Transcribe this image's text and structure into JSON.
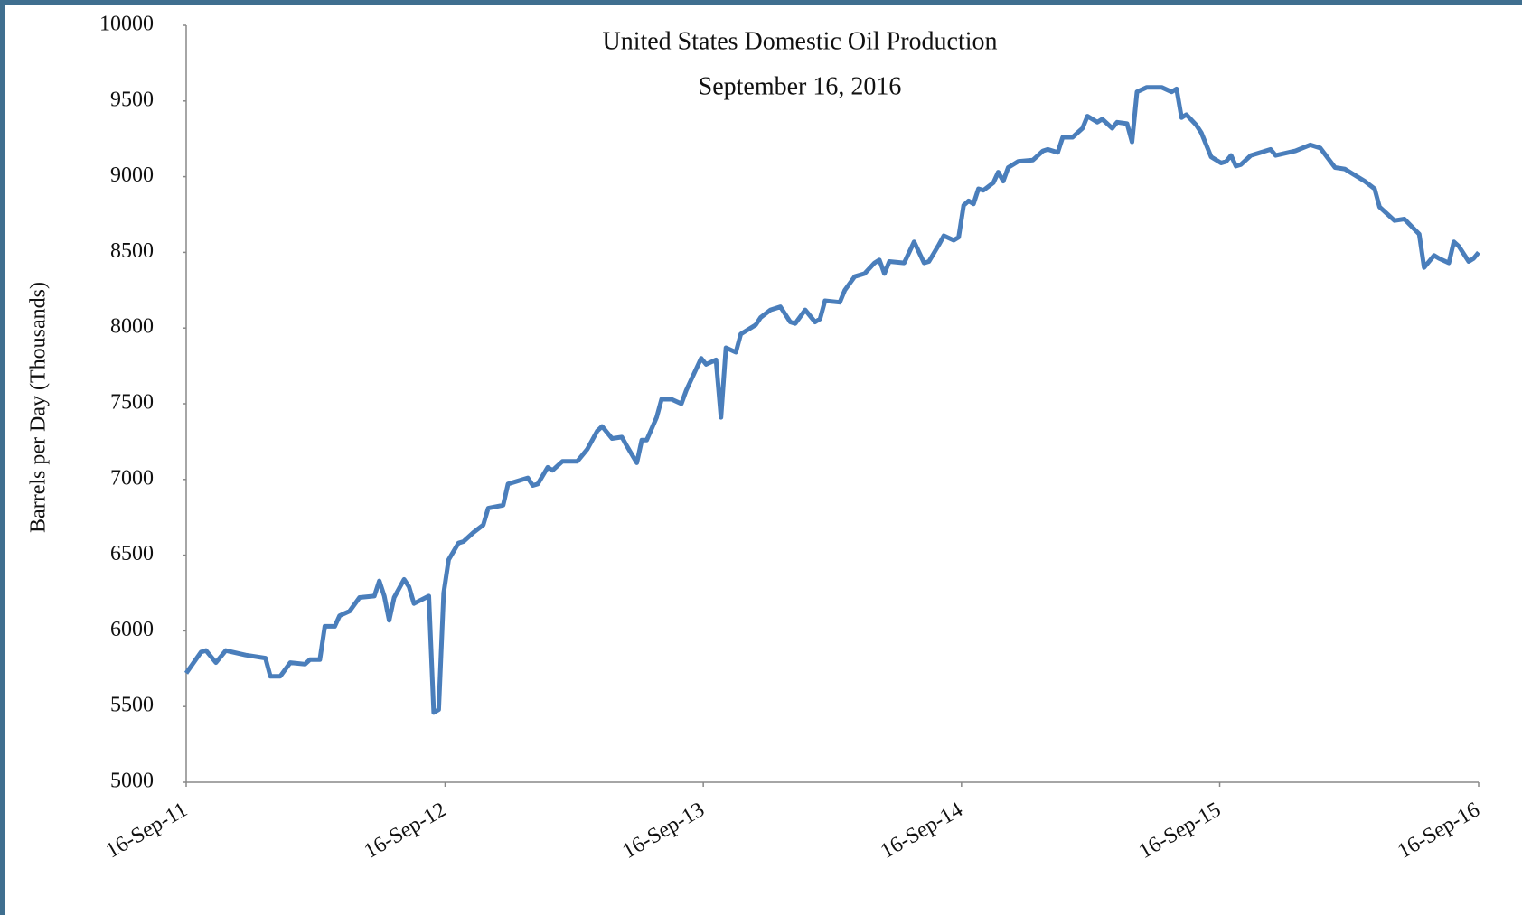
{
  "chart_data": {
    "type": "line",
    "title": "United States Domestic Oil Production",
    "subtitle": "September 16, 2016",
    "y_label": "Barrels per Day (Thousands)",
    "color": "#4a7ebb",
    "x": [
      "2011-09-16",
      "2011-10-07",
      "2011-10-14",
      "2011-10-28",
      "2011-11-11",
      "2011-12-09",
      "2012-01-06",
      "2012-01-13",
      "2012-01-27",
      "2012-02-10",
      "2012-03-02",
      "2012-03-09",
      "2012-03-23",
      "2012-03-30",
      "2012-04-13",
      "2012-04-20",
      "2012-05-04",
      "2012-05-18",
      "2012-06-08",
      "2012-06-15",
      "2012-06-22",
      "2012-06-29",
      "2012-07-06",
      "2012-07-20",
      "2012-07-27",
      "2012-08-03",
      "2012-08-24",
      "2012-08-31",
      "2012-09-07",
      "2012-09-14",
      "2012-09-21",
      "2012-10-05",
      "2012-10-12",
      "2012-10-26",
      "2012-11-09",
      "2012-11-16",
      "2012-12-07",
      "2012-12-14",
      "2013-01-11",
      "2013-01-18",
      "2013-01-25",
      "2013-02-08",
      "2013-02-15",
      "2013-03-01",
      "2013-03-22",
      "2013-04-05",
      "2013-04-19",
      "2013-04-26",
      "2013-05-10",
      "2013-05-24",
      "2013-05-31",
      "2013-06-14",
      "2013-06-21",
      "2013-06-28",
      "2013-07-12",
      "2013-07-19",
      "2013-08-02",
      "2013-08-16",
      "2013-08-23",
      "2013-09-06",
      "2013-09-13",
      "2013-09-20",
      "2013-10-04",
      "2013-10-11",
      "2013-10-18",
      "2013-11-01",
      "2013-11-08",
      "2013-11-29",
      "2013-12-06",
      "2013-12-20",
      "2014-01-03",
      "2014-01-17",
      "2014-01-24",
      "2014-02-07",
      "2014-02-21",
      "2014-02-28",
      "2014-03-07",
      "2014-03-28",
      "2014-04-04",
      "2014-04-18",
      "2014-05-02",
      "2014-05-16",
      "2014-05-23",
      "2014-05-30",
      "2014-06-06",
      "2014-06-27",
      "2014-07-11",
      "2014-07-25",
      "2014-08-01",
      "2014-08-15",
      "2014-08-22",
      "2014-09-05",
      "2014-09-12",
      "2014-09-19",
      "2014-09-26",
      "2014-10-03",
      "2014-10-10",
      "2014-10-17",
      "2014-10-31",
      "2014-11-07",
      "2014-11-14",
      "2014-11-21",
      "2014-12-05",
      "2014-12-26",
      "2015-01-09",
      "2015-01-16",
      "2015-01-30",
      "2015-02-06",
      "2015-02-20",
      "2015-03-06",
      "2015-03-13",
      "2015-03-27",
      "2015-04-03",
      "2015-04-17",
      "2015-04-24",
      "2015-05-08",
      "2015-05-15",
      "2015-05-22",
      "2015-06-05",
      "2015-06-26",
      "2015-07-10",
      "2015-07-17",
      "2015-07-24",
      "2015-07-31",
      "2015-08-14",
      "2015-08-21",
      "2015-09-04",
      "2015-09-18",
      "2015-09-25",
      "2015-10-02",
      "2015-10-09",
      "2015-10-16",
      "2015-10-30",
      "2015-11-13",
      "2015-11-27",
      "2015-12-04",
      "2016-01-01",
      "2016-01-22",
      "2016-02-05",
      "2016-02-26",
      "2016-03-11",
      "2016-04-08",
      "2016-04-22",
      "2016-04-29",
      "2016-05-20",
      "2016-06-03",
      "2016-06-24",
      "2016-07-01",
      "2016-07-15",
      "2016-07-22",
      "2016-08-05",
      "2016-08-12",
      "2016-08-19",
      "2016-09-02",
      "2016-09-09",
      "2016-09-16"
    ],
    "values": [
      5720,
      5860,
      5870,
      5790,
      5870,
      5840,
      5820,
      5700,
      5700,
      5790,
      5780,
      5810,
      5810,
      6030,
      6030,
      6100,
      6130,
      6220,
      6230,
      6330,
      6230,
      6070,
      6220,
      6340,
      6290,
      6180,
      6230,
      5460,
      5480,
      6250,
      6470,
      6580,
      6590,
      6650,
      6700,
      6810,
      6830,
      6970,
      7010,
      6960,
      6970,
      7080,
      7060,
      7120,
      7120,
      7200,
      7320,
      7350,
      7270,
      7280,
      7220,
      7110,
      7260,
      7260,
      7410,
      7530,
      7530,
      7500,
      7590,
      7730,
      7800,
      7760,
      7790,
      7410,
      7870,
      7840,
      7960,
      8020,
      8070,
      8120,
      8140,
      8040,
      8030,
      8120,
      8040,
      8060,
      8180,
      8170,
      8250,
      8340,
      8360,
      8430,
      8450,
      8360,
      8440,
      8430,
      8570,
      8430,
      8440,
      8550,
      8610,
      8580,
      8600,
      8810,
      8840,
      8820,
      8920,
      8910,
      8960,
      9030,
      8970,
      9060,
      9100,
      9110,
      9170,
      9180,
      9160,
      9260,
      9260,
      9320,
      9400,
      9360,
      9380,
      9320,
      9360,
      9350,
      9230,
      9560,
      9590,
      9590,
      9560,
      9580,
      9390,
      9410,
      9340,
      9290,
      9130,
      9090,
      9100,
      9140,
      9070,
      9080,
      9140,
      9160,
      9180,
      9140,
      9170,
      9210,
      9190,
      9060,
      9050,
      8970,
      8920,
      8800,
      8710,
      8720,
      8620,
      8400,
      8480,
      8460,
      8430,
      8570,
      8540,
      8440,
      8460,
      8500
    ],
    "xlim": [
      "2011-09-16",
      "2016-09-16"
    ],
    "xticks": [
      {
        "value": "2011-09-16",
        "label": "16-Sep-11"
      },
      {
        "value": "2012-09-16",
        "label": "16-Sep-12"
      },
      {
        "value": "2013-09-16",
        "label": "16-Sep-13"
      },
      {
        "value": "2014-09-16",
        "label": "16-Sep-14"
      },
      {
        "value": "2015-09-16",
        "label": "16-Sep-15"
      },
      {
        "value": "2016-09-16",
        "label": "16-Sep-16"
      }
    ],
    "ylim": [
      5000,
      10000
    ],
    "yticks": [
      5000,
      5500,
      6000,
      6500,
      7000,
      7500,
      8000,
      8500,
      9000,
      9500,
      10000
    ],
    "grid": false
  }
}
